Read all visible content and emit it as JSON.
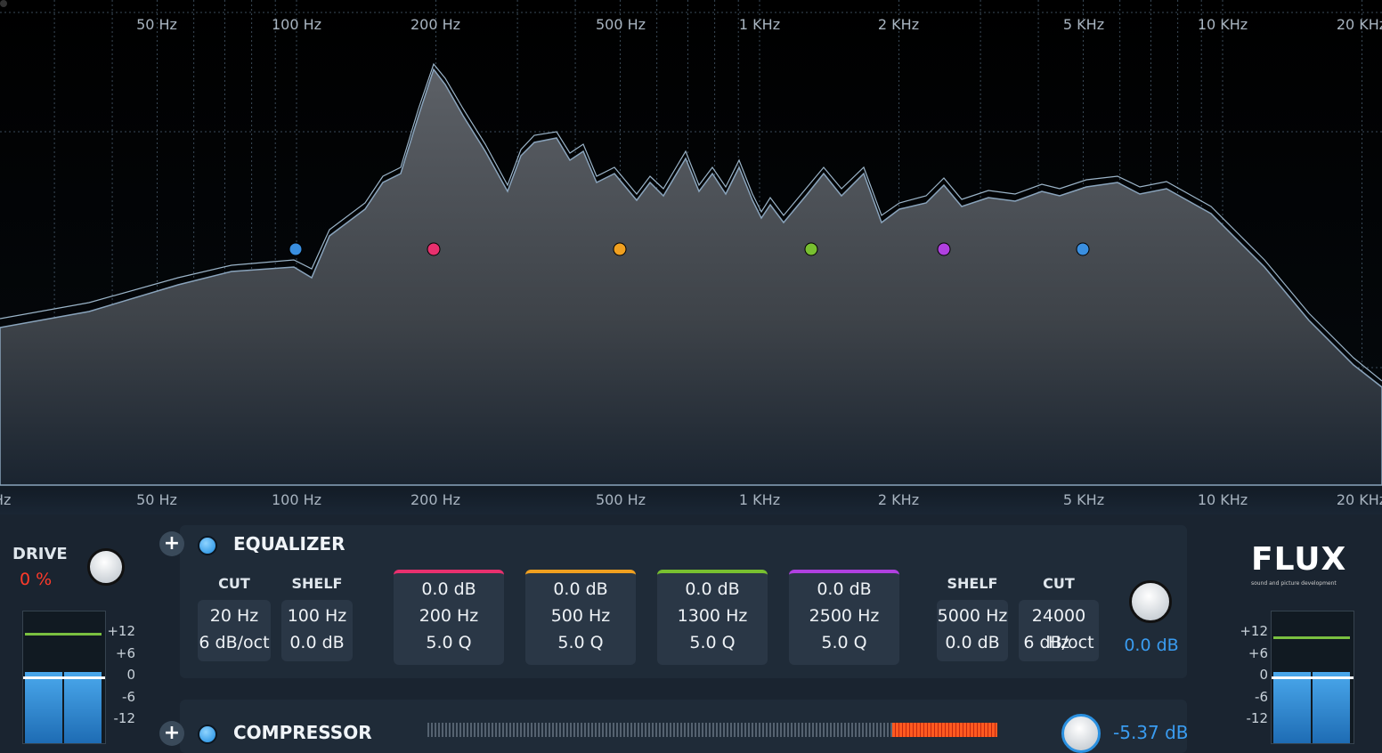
{
  "analyzer": {
    "top_labels": [
      "50 Hz",
      "100 Hz",
      "200 Hz",
      "500 Hz",
      "1 KHz",
      "2 KHz",
      "5 KHz",
      "10 KHz",
      "20 KHz"
    ],
    "bottom_labels": [
      "Hz",
      "50 Hz",
      "100 Hz",
      "200 Hz",
      "500 Hz",
      "1 KHz",
      "2 KHz",
      "5 KHz",
      "10 KHz",
      "20 KHz"
    ]
  },
  "drive": {
    "label": "DRIVE",
    "value": "0 %"
  },
  "meter_scale_left": [
    "+12",
    "+6",
    "0",
    "-6",
    "-12"
  ],
  "meter_scale_right": [
    "+12",
    "+6",
    "0",
    "-6",
    "-12"
  ],
  "equalizer": {
    "title": "EQUALIZER",
    "low_cut": {
      "header": "CUT",
      "lines": [
        "20 Hz",
        "6 dB/oct"
      ]
    },
    "low_shelf": {
      "header": "SHELF",
      "lines": [
        "100 Hz",
        "0.0 dB"
      ]
    },
    "peaks": [
      {
        "color": "#e8306e",
        "lines": [
          "0.0 dB",
          "200 Hz",
          "5.0 Q"
        ]
      },
      {
        "color": "#f0a020",
        "lines": [
          "0.0 dB",
          "500 Hz",
          "5.0 Q"
        ]
      },
      {
        "color": "#78c030",
        "lines": [
          "0.0 dB",
          "1300 Hz",
          "5.0 Q"
        ]
      },
      {
        "color": "#b040e0",
        "lines": [
          "0.0 dB",
          "2500 Hz",
          "5.0 Q"
        ]
      }
    ],
    "high_shelf": {
      "header": "SHELF",
      "lines": [
        "5000 Hz",
        "0.0 dB"
      ]
    },
    "high_cut": {
      "header": "CUT",
      "lines": [
        "24000 Hz",
        "6 dB/oct"
      ]
    },
    "output_gain": "0.0 dB"
  },
  "logo": {
    "name": "FLUX",
    "tagline": "sound and picture development"
  },
  "compressor": {
    "title": "COMPRESSOR",
    "value": "-5.37 dB"
  }
}
